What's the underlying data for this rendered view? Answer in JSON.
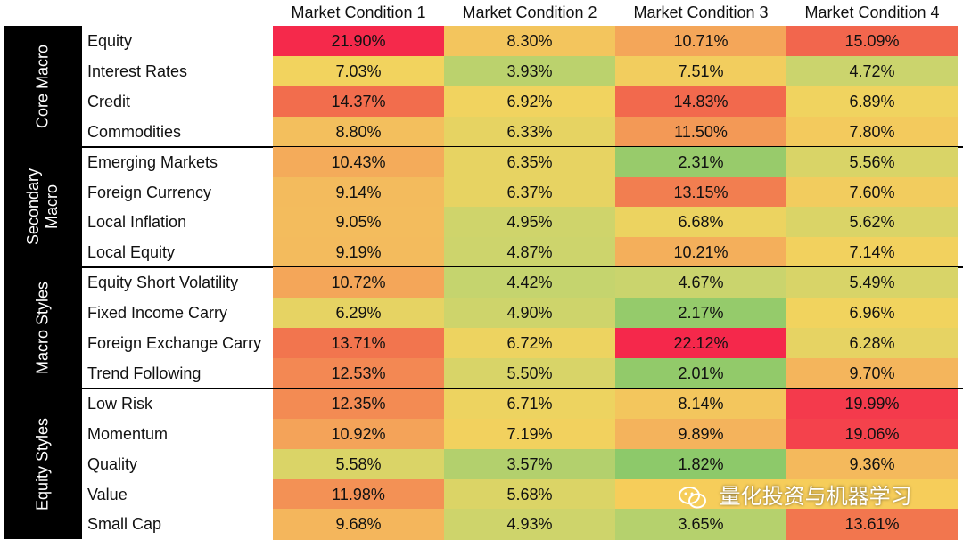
{
  "chart_data": {
    "type": "heatmap",
    "columns": [
      "Market Condition 1",
      "Market Condition 2",
      "Market Condition 3",
      "Market Condition 4"
    ],
    "groups": [
      {
        "name": "Core Macro",
        "rows": [
          {
            "label": "Equity",
            "values": [
              21.9,
              8.3,
              10.71,
              15.09
            ],
            "display": [
              "21.90%",
              "8.30%",
              "10.71%",
              "15.09%"
            ]
          },
          {
            "label": "Interest Rates",
            "values": [
              7.03,
              3.93,
              7.51,
              4.72
            ],
            "display": [
              "7.03%",
              "3.93%",
              "7.51%",
              "4.72%"
            ]
          },
          {
            "label": "Credit",
            "values": [
              14.37,
              6.92,
              14.83,
              6.89
            ],
            "display": [
              "14.37%",
              "6.92%",
              "14.83%",
              "6.89%"
            ]
          },
          {
            "label": "Commodities",
            "values": [
              8.8,
              6.33,
              11.5,
              7.8
            ],
            "display": [
              "8.80%",
              "6.33%",
              "11.50%",
              "7.80%"
            ]
          }
        ]
      },
      {
        "name": "Secondary Macro",
        "rows": [
          {
            "label": "Emerging Markets",
            "values": [
              10.43,
              6.35,
              2.31,
              5.56
            ],
            "display": [
              "10.43%",
              "6.35%",
              "2.31%",
              "5.56%"
            ]
          },
          {
            "label": "Foreign Currency",
            "values": [
              9.14,
              6.37,
              13.15,
              7.6
            ],
            "display": [
              "9.14%",
              "6.37%",
              "13.15%",
              "7.60%"
            ]
          },
          {
            "label": "Local Inflation",
            "values": [
              9.05,
              4.95,
              6.68,
              5.62
            ],
            "display": [
              "9.05%",
              "4.95%",
              "6.68%",
              "5.62%"
            ]
          },
          {
            "label": "Local Equity",
            "values": [
              9.19,
              4.87,
              10.21,
              7.14
            ],
            "display": [
              "9.19%",
              "4.87%",
              "10.21%",
              "7.14%"
            ]
          }
        ]
      },
      {
        "name": "Macro Styles",
        "rows": [
          {
            "label": "Equity Short Volatility",
            "values": [
              10.72,
              4.42,
              4.67,
              5.49
            ],
            "display": [
              "10.72%",
              "4.42%",
              "4.67%",
              "5.49%"
            ]
          },
          {
            "label": "Fixed Income Carry",
            "values": [
              6.29,
              4.9,
              2.17,
              6.96
            ],
            "display": [
              "6.29%",
              "4.90%",
              "2.17%",
              "6.96%"
            ]
          },
          {
            "label": "Foreign Exchange Carry",
            "values": [
              13.71,
              6.72,
              22.12,
              6.28
            ],
            "display": [
              "13.71%",
              "6.72%",
              "22.12%",
              "6.28%"
            ]
          },
          {
            "label": "Trend Following",
            "values": [
              12.53,
              5.5,
              2.01,
              9.7
            ],
            "display": [
              "12.53%",
              "5.50%",
              "2.01%",
              "9.70%"
            ]
          }
        ]
      },
      {
        "name": "Equity Styles",
        "rows": [
          {
            "label": "Low Risk",
            "values": [
              12.35,
              6.71,
              8.14,
              19.99
            ],
            "display": [
              "12.35%",
              "6.71%",
              "8.14%",
              "19.99%"
            ]
          },
          {
            "label": "Momentum",
            "values": [
              10.92,
              7.19,
              9.89,
              19.06
            ],
            "display": [
              "10.92%",
              "7.19%",
              "9.89%",
              "19.06%"
            ]
          },
          {
            "label": "Quality",
            "values": [
              5.58,
              3.57,
              1.82,
              9.36
            ],
            "display": [
              "5.58%",
              "3.57%",
              "1.82%",
              "9.36%"
            ]
          },
          {
            "label": "Value",
            "values": [
              11.98,
              5.68,
              null,
              null
            ],
            "display": [
              "11.98%",
              "5.68%",
              "",
              ""
            ]
          },
          {
            "label": "Small Cap",
            "values": [
              9.68,
              4.93,
              3.65,
              13.61
            ],
            "display": [
              "9.68%",
              "4.93%",
              "3.65%",
              "13.61%"
            ]
          }
        ]
      }
    ],
    "colors": {
      "low": "#8dc96a",
      "mid_low": "#c7d46e",
      "mid": "#f2d35e",
      "mid_high": "#f4a85b",
      "high": "#f26b4d",
      "max": "#f5284b"
    }
  },
  "watermark": {
    "text": "量化投资与机器学习",
    "icon": "wechat-icon"
  }
}
